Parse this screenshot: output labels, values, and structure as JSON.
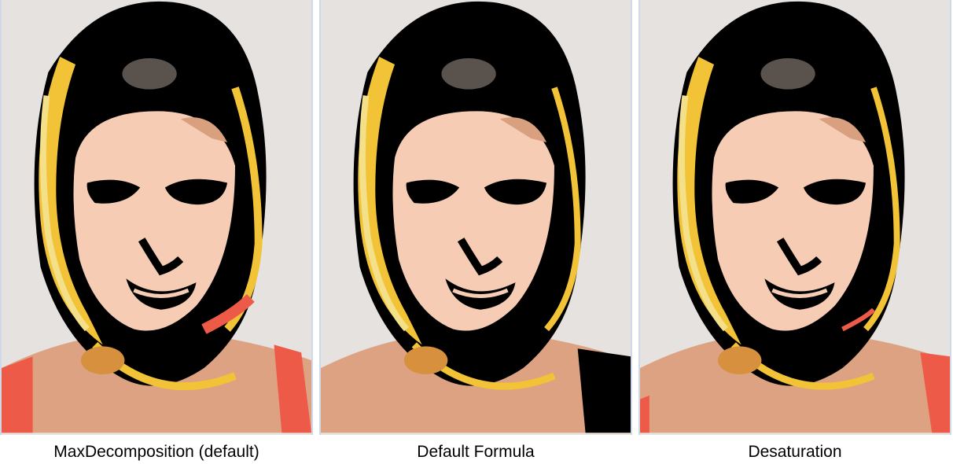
{
  "panels": [
    {
      "caption": "MaxDecomposition (default)"
    },
    {
      "caption": "Default Formula"
    },
    {
      "caption": "Desaturation"
    }
  ],
  "palette": {
    "background": "#e6e2df",
    "hair": "#000000",
    "skin": "#f6cdb4",
    "shadow_skin": "#d8a07e",
    "hat": "#5a524c",
    "scarf_yellow": "#f2c336",
    "scarf_pale": "#f5e08a",
    "scarf_orange": "#d6903e",
    "accent_red": "#ee5a48",
    "body": "#dda282"
  }
}
